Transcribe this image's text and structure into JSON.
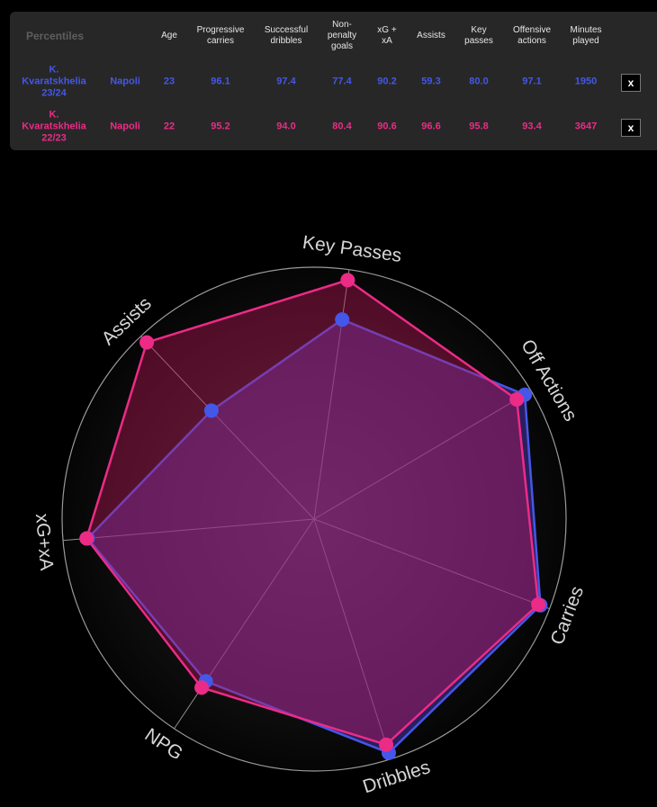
{
  "table": {
    "headers": {
      "percentiles": "Percentiles",
      "age": "Age",
      "progressive_carries": [
        "Progressive",
        "carries"
      ],
      "successful_dribbles": [
        "Successful",
        "dribbles"
      ],
      "non_penalty_goals": [
        "Non-",
        "penalty",
        "goals"
      ],
      "xg_xa": [
        "xG +",
        "xA"
      ],
      "assists": "Assists",
      "key_passes": [
        "Key",
        "passes"
      ],
      "offensive_actions": [
        "Offensive",
        "actions"
      ],
      "minutes_played": [
        "Minutes",
        "played"
      ]
    },
    "rows": [
      {
        "player": [
          "K.",
          "Kvaratskhelia",
          "23/24"
        ],
        "team": "Napoli",
        "age": "23",
        "progressive_carries": "96.1",
        "successful_dribbles": "97.4",
        "non_penalty_goals": "77.4",
        "xg_xa": "90.2",
        "assists": "59.3",
        "key_passes": "80.0",
        "offensive_actions": "97.1",
        "minutes_played": "1950",
        "remove_label": "x",
        "color": "#4457e8"
      },
      {
        "player": [
          "K.",
          "Kvaratskhelia",
          "22/23"
        ],
        "team": "Napoli",
        "age": "22",
        "progressive_carries": "95.2",
        "successful_dribbles": "94.0",
        "non_penalty_goals": "80.4",
        "xg_xa": "90.6",
        "assists": "96.6",
        "key_passes": "95.8",
        "offensive_actions": "93.4",
        "minutes_played": "3647",
        "remove_label": "x",
        "color": "#ec2b87"
      }
    ]
  },
  "chart_data": {
    "type": "radar",
    "axes": [
      "Key Passes",
      "Off Actions",
      "Carries",
      "Dribbles",
      "NPG",
      "xG+xA",
      "Assists"
    ],
    "rlim": [
      0,
      100
    ],
    "series": [
      {
        "values": [
          80.0,
          97.1,
          96.1,
          97.4,
          77.4,
          90.2,
          59.3
        ],
        "color": "#4457e8"
      },
      {
        "values": [
          95.8,
          93.4,
          95.2,
          94.0,
          80.4,
          90.6,
          96.6
        ],
        "color": "#ec2b87"
      }
    ]
  }
}
